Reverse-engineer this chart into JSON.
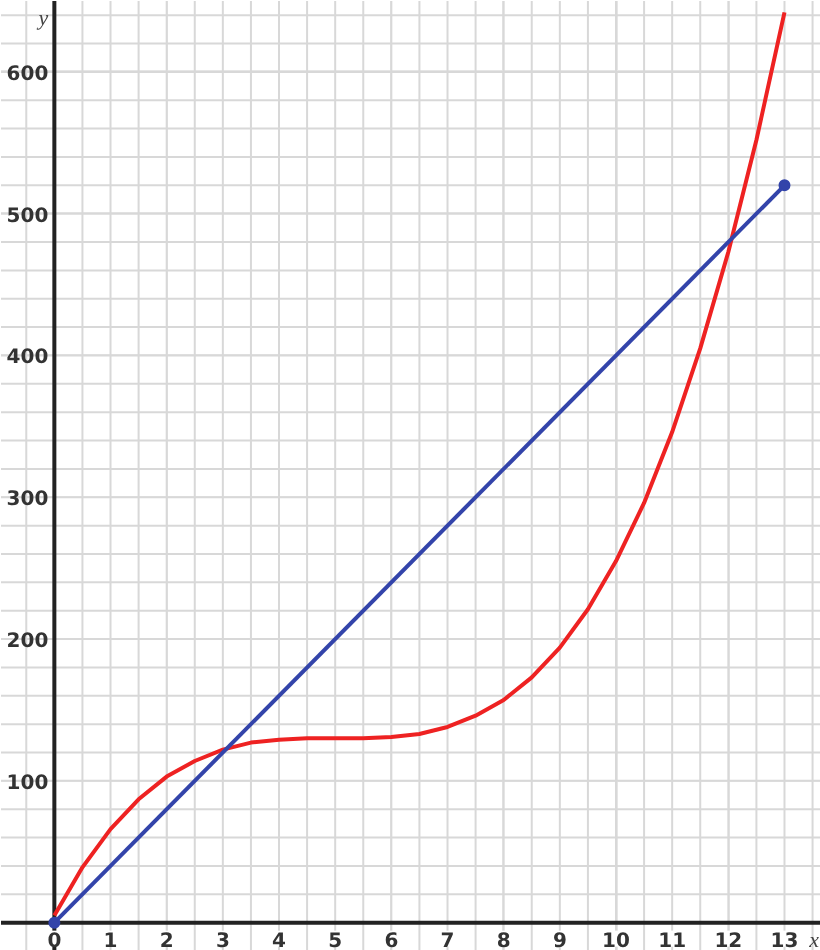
{
  "chart_data": {
    "type": "line",
    "xlabel": "x",
    "ylabel": "y",
    "xlim": [
      -0.95,
      13.65
    ],
    "ylim": [
      -20,
      650
    ],
    "xticks": [
      0,
      1,
      2,
      3,
      4,
      5,
      6,
      7,
      8,
      9,
      10,
      11,
      12,
      13
    ],
    "yticks": [
      100,
      200,
      300,
      400,
      500,
      600
    ],
    "grid": true,
    "line_style": "solid",
    "series": [
      {
        "color": "#ee2222",
        "x": [
          0,
          0.5,
          1,
          1.5,
          2,
          2.5,
          3,
          3.5,
          4,
          4.5,
          5,
          5.5,
          6,
          6.5,
          7,
          7.5,
          8,
          8.5,
          9,
          9.5,
          10,
          10.5,
          11,
          11.5,
          12,
          12.5,
          13
        ],
        "values": [
          5,
          39,
          66,
          87,
          103,
          114,
          122,
          127,
          129,
          130,
          130,
          130,
          131,
          133,
          138,
          146,
          157,
          173,
          194,
          221,
          255,
          296,
          346,
          405,
          473,
          552,
          642
        ]
      },
      {
        "color": "#3344aa",
        "marker": "circle",
        "x": [
          0,
          13
        ],
        "values": [
          0,
          520
        ]
      }
    ]
  }
}
